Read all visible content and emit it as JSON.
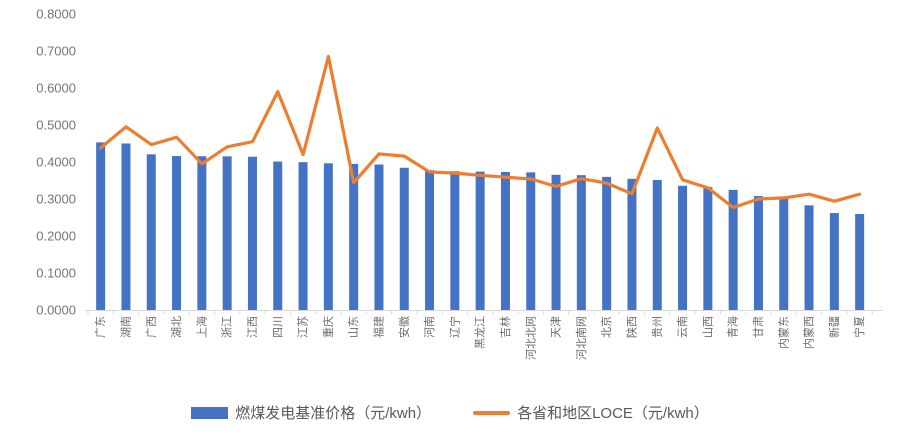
{
  "chart_data": {
    "type": "bar",
    "combo": "bar+line",
    "title": "",
    "xlabel": "",
    "ylabel": "",
    "ylim": [
      0,
      0.8
    ],
    "ytick_step": 0.1,
    "yticks": [
      "0.0000",
      "0.1000",
      "0.2000",
      "0.3000",
      "0.4000",
      "0.5000",
      "0.6000",
      "0.7000",
      "0.8000"
    ],
    "grid": false,
    "legend_position": "bottom",
    "categories": [
      "广东",
      "湖南",
      "广西",
      "湖北",
      "上海",
      "浙江",
      "江西",
      "四川",
      "江苏",
      "重庆",
      "山东",
      "福建",
      "安徽",
      "河南",
      "辽宁",
      "黑龙江",
      "吉林",
      "河北北网",
      "天津",
      "河北南网",
      "北京",
      "陕西",
      "贵州",
      "云南",
      "山西",
      "青海",
      "甘肃",
      "内蒙东",
      "内蒙西",
      "新疆",
      "宁夏"
    ],
    "series": [
      {
        "name": "燃煤发电基准价格（元/kwh）",
        "type": "bar",
        "color": "#4472C4",
        "values": [
          0.453,
          0.45,
          0.4207,
          0.4161,
          0.4155,
          0.4153,
          0.4143,
          0.4012,
          0.3995,
          0.3964,
          0.3949,
          0.3932,
          0.3844,
          0.3779,
          0.3749,
          0.374,
          0.3731,
          0.372,
          0.3655,
          0.3644,
          0.3598,
          0.3545,
          0.3515,
          0.3358,
          0.332,
          0.3247,
          0.3078,
          0.3035,
          0.2829,
          0.262,
          0.2595
        ]
      },
      {
        "name": "各省和地区LOCE（元/kwh）",
        "type": "line",
        "color": "#ED7D31",
        "values": [
          0.438,
          0.495,
          0.447,
          0.467,
          0.395,
          0.441,
          0.455,
          0.59,
          0.42,
          0.685,
          0.344,
          0.422,
          0.416,
          0.373,
          0.37,
          0.364,
          0.359,
          0.354,
          0.334,
          0.355,
          0.343,
          0.314,
          0.492,
          0.352,
          0.33,
          0.277,
          0.3,
          0.303,
          0.313,
          0.294,
          0.313
        ]
      }
    ],
    "axis_color": "#D9D9D9"
  }
}
